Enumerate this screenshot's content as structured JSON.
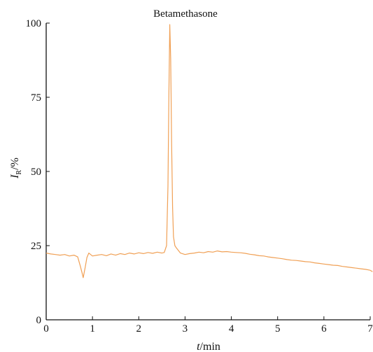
{
  "chart_data": {
    "type": "line",
    "title": "",
    "annotations": [
      {
        "text": "Betamethasone",
        "x": 2.68,
        "y": 100
      }
    ],
    "xlabel": {
      "italic": "t",
      "text": "/min"
    },
    "ylabel": {
      "italic": "I",
      "subscript": "R",
      "text": "/%"
    },
    "xlim": [
      0,
      7.05
    ],
    "ylim": [
      0,
      100
    ],
    "xticks": [
      0,
      1,
      2,
      3,
      4,
      5,
      6,
      7
    ],
    "yticks": [
      0,
      25,
      50,
      75,
      100
    ],
    "grid": false,
    "line_color": "#f0a055",
    "series": [
      {
        "x": [
          0.0,
          0.1,
          0.2,
          0.3,
          0.4,
          0.5,
          0.6,
          0.68,
          0.74,
          0.78,
          0.8,
          0.84,
          0.88,
          0.92,
          0.96,
          1.0,
          1.1,
          1.2,
          1.3,
          1.4,
          1.5,
          1.6,
          1.7,
          1.8,
          1.9,
          2.0,
          2.1,
          2.2,
          2.3,
          2.4,
          2.5,
          2.55,
          2.6,
          2.63,
          2.65,
          2.67,
          2.69,
          2.71,
          2.73,
          2.75,
          2.78,
          2.8,
          2.85,
          2.9,
          3.0,
          3.1,
          3.2,
          3.3,
          3.4,
          3.5,
          3.6,
          3.7,
          3.8,
          3.9,
          4.0,
          4.1,
          4.2,
          4.3,
          4.4,
          4.5,
          4.6,
          4.7,
          4.8,
          4.9,
          5.0,
          5.1,
          5.2,
          5.3,
          5.4,
          5.5,
          5.6,
          5.7,
          5.8,
          5.9,
          6.0,
          6.1,
          6.2,
          6.3,
          6.4,
          6.5,
          6.6,
          6.7,
          6.8,
          6.9,
          7.0,
          7.05
        ],
        "y": [
          22.5,
          22.2,
          22.0,
          21.8,
          22.0,
          21.5,
          21.8,
          21.2,
          18.0,
          15.5,
          14.2,
          17.5,
          21.0,
          22.5,
          22.0,
          21.5,
          21.8,
          22.0,
          21.6,
          22.2,
          21.8,
          22.3,
          22.0,
          22.5,
          22.2,
          22.6,
          22.3,
          22.7,
          22.4,
          22.8,
          22.5,
          22.7,
          25.0,
          45.0,
          75.0,
          99.5,
          88.0,
          60.0,
          38.0,
          28.0,
          25.0,
          24.5,
          23.5,
          22.5,
          22.0,
          22.3,
          22.5,
          22.8,
          22.6,
          23.0,
          22.8,
          23.2,
          22.9,
          23.0,
          22.8,
          22.7,
          22.6,
          22.4,
          22.1,
          21.9,
          21.6,
          21.5,
          21.2,
          21.0,
          20.8,
          20.6,
          20.3,
          20.1,
          20.0,
          19.8,
          19.6,
          19.5,
          19.2,
          19.0,
          18.8,
          18.6,
          18.4,
          18.3,
          18.0,
          17.8,
          17.6,
          17.4,
          17.2,
          17.0,
          16.7,
          16.2
        ]
      }
    ]
  }
}
